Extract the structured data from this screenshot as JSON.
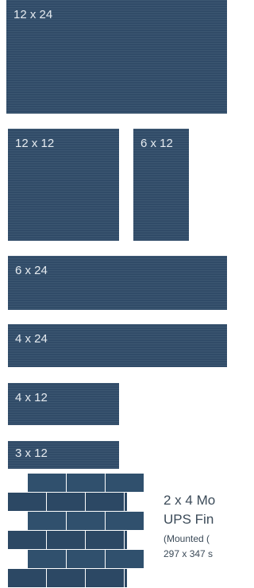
{
  "tiles": [
    {
      "label": "12 x 24"
    },
    {
      "label": "12 x 12"
    },
    {
      "label": "6 x 12"
    },
    {
      "label": "6 x 24"
    },
    {
      "label": "4 x 24"
    },
    {
      "label": "4 x 12"
    },
    {
      "label": "3 x 12"
    }
  ],
  "mosaic": {
    "title": "2 x 4 Mo",
    "subtitle": "UPS Fin",
    "note": "(Mounted (",
    "size": "297 x 347 s"
  }
}
